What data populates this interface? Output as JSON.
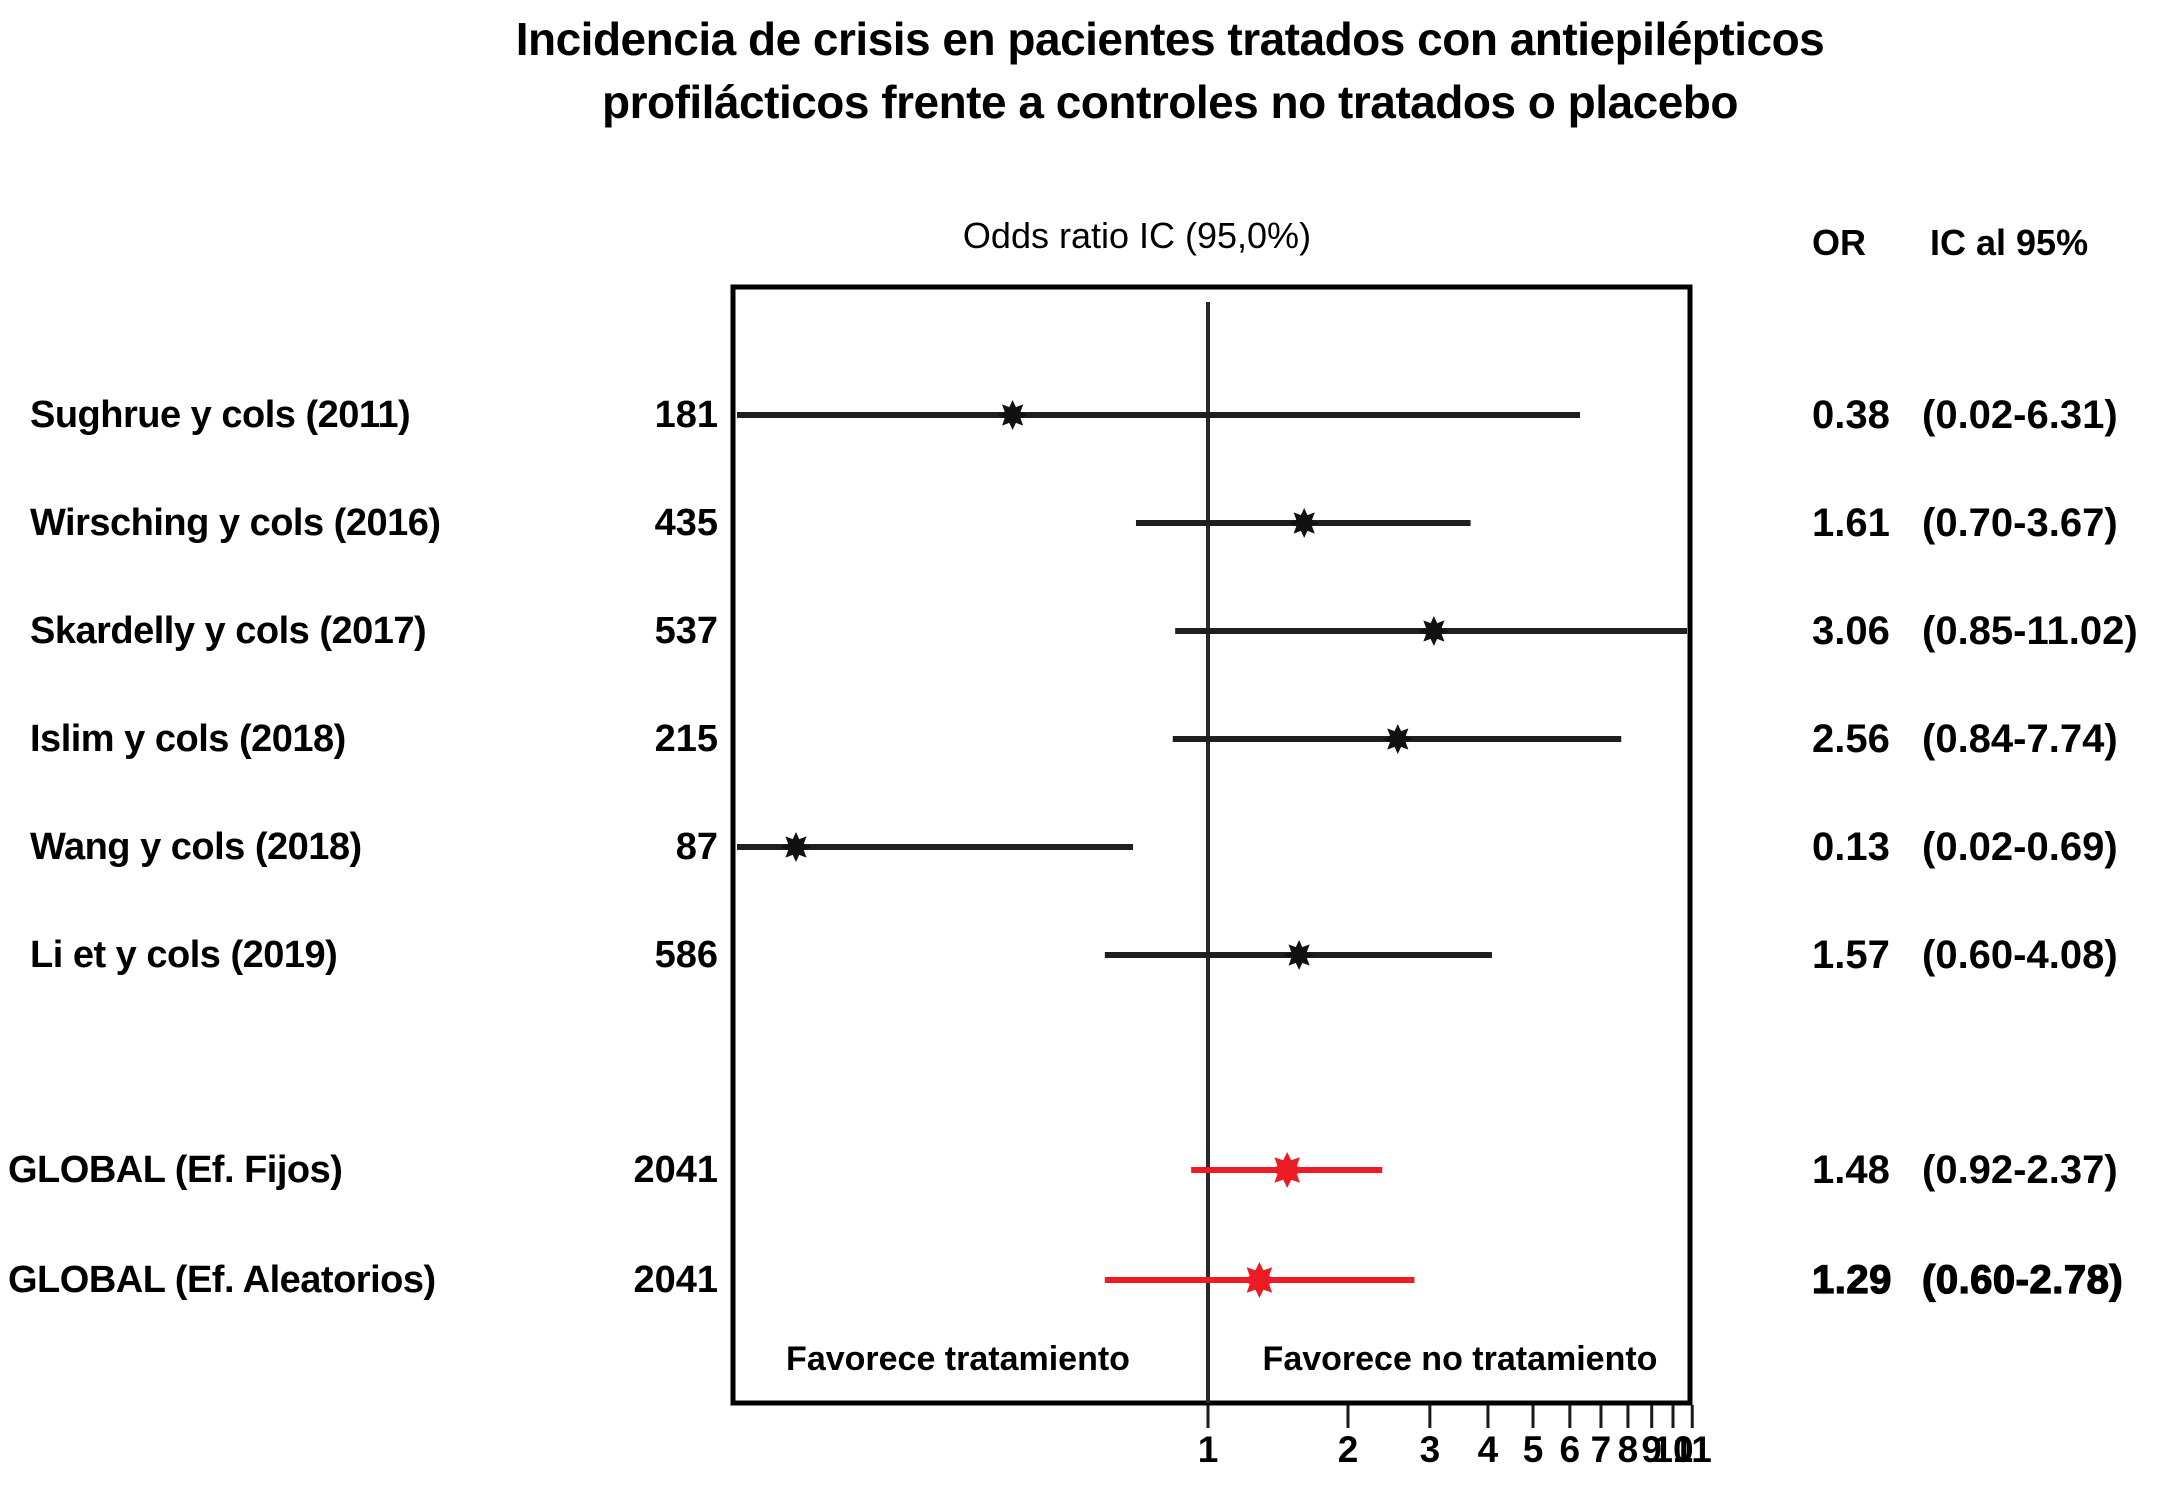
{
  "title": {
    "line1": "Incidencia de crisis en pacientes tratados con antiepilépticos",
    "line2": "profilácticos frente a controles no tratados o placebo"
  },
  "chart_data": {
    "type": "forest",
    "header": "Odds ratio IC  (95,0%)",
    "columns": {
      "or": "OR",
      "ci": "IC al 95%"
    },
    "favors_left": "Favorece tratamiento",
    "favors_right": "Favorece no tratamiento",
    "axis": {
      "scale": "log",
      "ref_value": 1,
      "tick_values": [
        1,
        2,
        3,
        4,
        5,
        6,
        7,
        8,
        9,
        10,
        11
      ],
      "range_low": 0.095,
      "range_high": 11
    },
    "colors": {
      "study_marker": "#111111",
      "global_marker": "#ec1c24",
      "line": "#1f1f1f",
      "box_border": "#000000"
    },
    "studies": [
      {
        "label": "Sughrue y cols (2011)",
        "n": "181",
        "or": 0.38,
        "ci_low": 0.02,
        "ci_high": 6.31,
        "or_text": "0.38",
        "ci_text": "(0.02-6.31)",
        "group": "study",
        "bold": false
      },
      {
        "label": "Wirsching y cols (2016)",
        "n": "435",
        "or": 1.61,
        "ci_low": 0.7,
        "ci_high": 3.67,
        "or_text": "1.61",
        "ci_text": "(0.70-3.67)",
        "group": "study",
        "bold": false
      },
      {
        "label": "Skardelly y cols (2017)",
        "n": "537",
        "or": 3.06,
        "ci_low": 0.85,
        "ci_high": 11.02,
        "or_text": "3.06",
        "ci_text": "(0.85-11.02)",
        "group": "study",
        "bold": false
      },
      {
        "label": "Islim y cols (2018)",
        "n": "215",
        "or": 2.56,
        "ci_low": 0.84,
        "ci_high": 7.74,
        "or_text": "2.56",
        "ci_text": "(0.84-7.74)",
        "group": "study",
        "bold": false
      },
      {
        "label": "Wang y cols (2018)",
        "n": "87",
        "or": 0.13,
        "ci_low": 0.02,
        "ci_high": 0.69,
        "or_text": "0.13",
        "ci_text": "(0.02-0.69)",
        "group": "study",
        "bold": false
      },
      {
        "label": "Li et y cols (2019)",
        "n": "586",
        "or": 1.57,
        "ci_low": 0.6,
        "ci_high": 4.08,
        "or_text": "1.57",
        "ci_text": "(0.60-4.08)",
        "group": "study",
        "bold": false
      },
      {
        "label": "GLOBAL (Ef. Fijos)",
        "n": "2041",
        "or": 1.48,
        "ci_low": 0.92,
        "ci_high": 2.37,
        "or_text": "1.48",
        "ci_text": "(0.92-2.37)",
        "group": "global",
        "bold": false
      },
      {
        "label": "GLOBAL (Ef. Aleatorios)",
        "n": "2041",
        "or": 1.29,
        "ci_low": 0.6,
        "ci_high": 2.78,
        "or_text": "1.29",
        "ci_text": "(0.60-2.78)",
        "group": "global",
        "bold": true
      }
    ]
  }
}
